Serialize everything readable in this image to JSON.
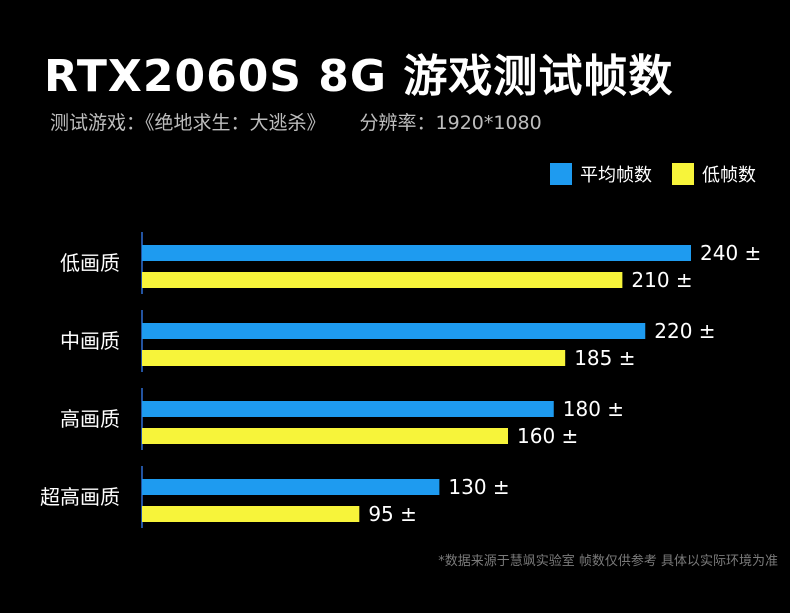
{
  "header": {
    "title": "RTX2060S 8G  游戏测试帧数",
    "subtitle_game": "测试游戏：《绝地求生：大逃杀》",
    "subtitle_resolution": "分辨率：1920*1080"
  },
  "footnote": "*数据来源于慧飒实验室 帧数仅供参考 具体以实际环境为准",
  "colors": {
    "avg": "#1e9bf0",
    "low": "#f7f43a",
    "axis": "#2f6fd6"
  },
  "chart_data": {
    "type": "bar",
    "orientation": "horizontal",
    "categories": [
      "低画质",
      "中画质",
      "高画质",
      "超高画质"
    ],
    "series": [
      {
        "name": "平均帧数",
        "values": [
          240,
          220,
          180,
          130
        ]
      },
      {
        "name": "低帧数",
        "values": [
          210,
          185,
          160,
          95
        ]
      }
    ],
    "value_suffix": " ±",
    "xlim": [
      0,
      240
    ],
    "grid": false,
    "legend": "top-right"
  }
}
